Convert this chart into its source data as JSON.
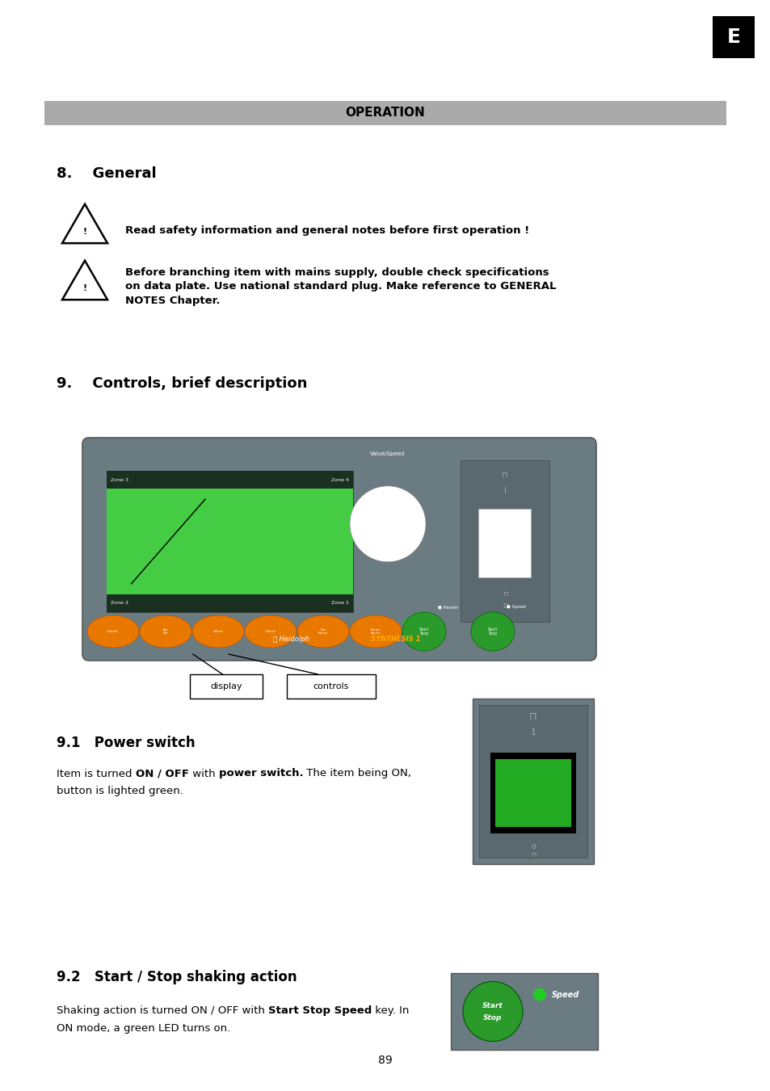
{
  "bg_color": "#ffffff",
  "page_width": 9.54,
  "page_height": 13.51,
  "dpi": 100,
  "header_bar_color": "#aaaaaa",
  "header_text": "OPERATION",
  "tab_label": "E",
  "tab_bg": "#000000",
  "tab_fg": "#ffffff",
  "section8_title": "8.    General",
  "warn1_text": "Read safety information and general notes before first operation !",
  "warn2_line1": "Before branching item with mains supply, double check specifications",
  "warn2_line2": "on data plate. Use national standard plug. Make reference to GENERAL",
  "warn2_line3": "NOTES Chapter.",
  "section9_title": "9.    Controls, brief description",
  "section91_title": "9.1   Power switch",
  "power_line1_pre": "Item is turned ",
  "power_line1_bold1": "ON / OFF",
  "power_line1_mid": " with ",
  "power_line1_bold2": "power switch.",
  "power_line1_post": " The item being ON,",
  "power_line2": "button is lighted green.",
  "section92_title": "9.2   Start / Stop shaking action",
  "shake_line1_pre": "Shaking action is turned ON / OFF with ",
  "shake_line1_bold": "Start Stop Speed",
  "shake_line1_post": " key. In",
  "shake_line2": "ON mode, a green LED turns on.",
  "page_number": "89",
  "panel_color": "#6b7b82",
  "screen_green": "#44cc44",
  "btn_orange": "#e87800",
  "btn_green": "#2a9a2a",
  "btn_green_led": "#22cc22"
}
